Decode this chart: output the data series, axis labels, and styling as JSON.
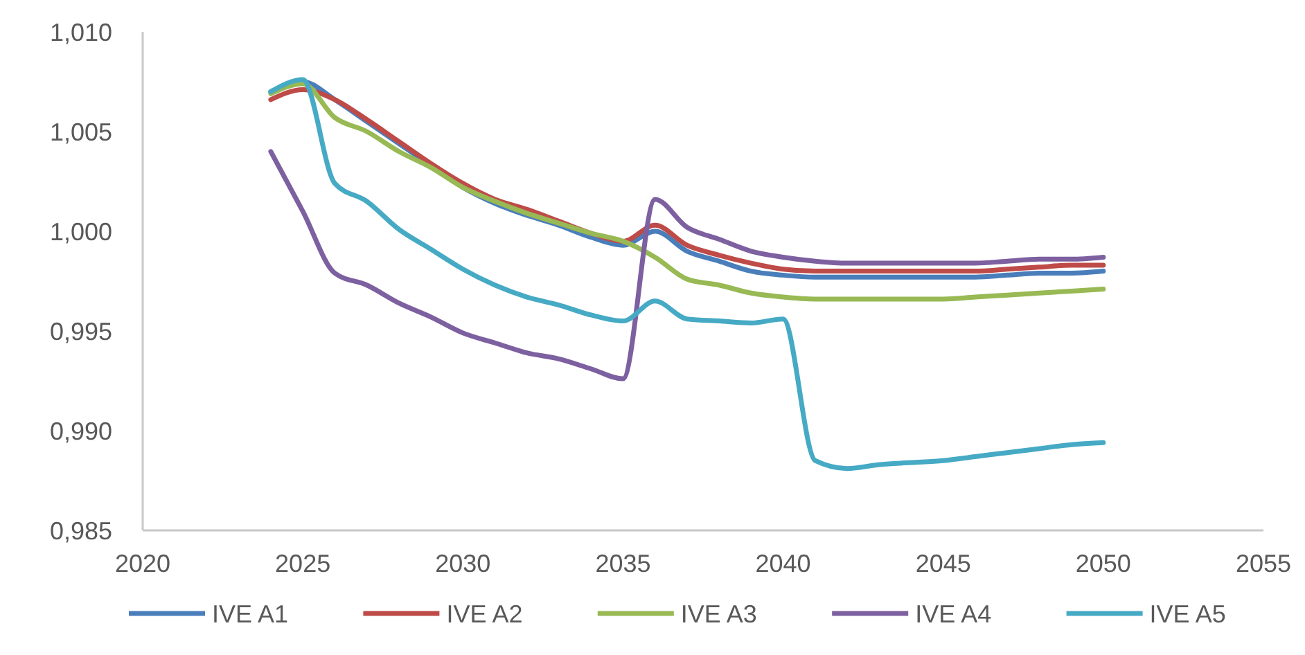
{
  "chart_data": {
    "type": "line",
    "x": [
      2024,
      2025,
      2026,
      2027,
      2028,
      2029,
      2030,
      2031,
      2032,
      2033,
      2034,
      2035,
      2036,
      2037,
      2038,
      2039,
      2040,
      2041,
      2042,
      2043,
      2044,
      2045,
      2046,
      2047,
      2048,
      2049,
      2050
    ],
    "series": [
      {
        "name": "IVE A1",
        "color": "#4a7ebb",
        "values": [
          1.007,
          1.0075,
          1.0066,
          1.0055,
          1.0044,
          1.0033,
          1.0022,
          1.0014,
          1.0008,
          1.0003,
          0.9997,
          0.9993,
          1.0,
          0.999,
          0.9985,
          0.998,
          0.9978,
          0.9977,
          0.9977,
          0.9977,
          0.9977,
          0.9977,
          0.9977,
          0.9978,
          0.9979,
          0.9979,
          0.998
        ]
      },
      {
        "name": "IVE A2",
        "color": "#be4b48",
        "values": [
          1.0066,
          1.0071,
          1.0066,
          1.0056,
          1.0045,
          1.0034,
          1.0024,
          1.0016,
          1.0011,
          1.0005,
          0.9999,
          0.9995,
          1.0003,
          0.9993,
          0.9988,
          0.9984,
          0.9981,
          0.998,
          0.998,
          0.998,
          0.998,
          0.998,
          0.998,
          0.9981,
          0.9982,
          0.9983,
          0.9983
        ]
      },
      {
        "name": "IVE A3",
        "color": "#98b954",
        "values": [
          1.0069,
          1.0074,
          1.0057,
          1.005,
          1.004,
          1.0032,
          1.0022,
          1.0015,
          1.0009,
          1.0004,
          0.9999,
          0.9995,
          0.9987,
          0.9976,
          0.9973,
          0.9969,
          0.9967,
          0.9966,
          0.9966,
          0.9966,
          0.9966,
          0.9966,
          0.9967,
          0.9968,
          0.9969,
          0.997,
          0.9971
        ]
      },
      {
        "name": "IVE A4",
        "color": "#7d60a0",
        "values": [
          1.004,
          1.001,
          0.9979,
          0.9973,
          0.9964,
          0.9957,
          0.9949,
          0.9944,
          0.9939,
          0.9936,
          0.9931,
          0.9926,
          1.0016,
          1.0002,
          0.9996,
          0.999,
          0.9987,
          0.9985,
          0.9984,
          0.9984,
          0.9984,
          0.9984,
          0.9984,
          0.9985,
          0.9986,
          0.9986,
          0.9987
        ]
      },
      {
        "name": "IVE A5",
        "color": "#46aac5",
        "values": [
          1.007,
          1.0076,
          1.0024,
          1.0015,
          1.0001,
          0.9991,
          0.9981,
          0.9973,
          0.9967,
          0.9963,
          0.9958,
          0.9955,
          0.9965,
          0.9956,
          0.9955,
          0.9954,
          0.9956,
          0.9885,
          0.9881,
          0.9883,
          0.9884,
          0.9885,
          0.9887,
          0.9889,
          0.9891,
          0.9893,
          0.9894
        ]
      }
    ],
    "xlim": [
      2020,
      2055
    ],
    "xticks": [
      2020,
      2025,
      2030,
      2035,
      2040,
      2045,
      2050,
      2055
    ],
    "ylim": [
      0.985,
      1.01
    ],
    "yticks": [
      {
        "value": 0.985,
        "label": "0,985"
      },
      {
        "value": 0.99,
        "label": "0,990"
      },
      {
        "value": 0.995,
        "label": "0,995"
      },
      {
        "value": 1.0,
        "label": "1,000"
      },
      {
        "value": 1.005,
        "label": "1,005"
      },
      {
        "value": 1.01,
        "label": "1,010"
      }
    ],
    "grid": false,
    "legend": "bottom",
    "marker": "none",
    "line_style": "solid"
  }
}
